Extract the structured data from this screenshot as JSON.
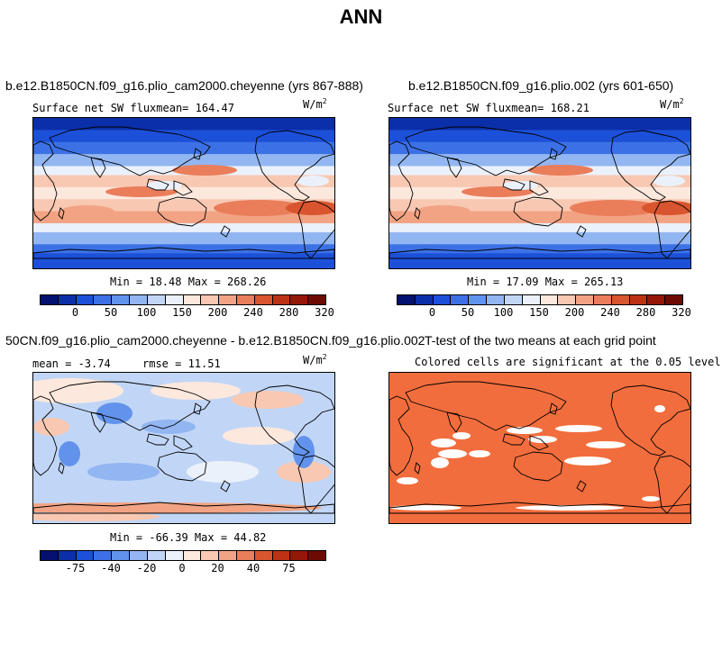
{
  "page": {
    "title": "ANN"
  },
  "colors": {
    "abs_scale": [
      "#05116e",
      "#0b2fa9",
      "#1c50d9",
      "#3c71e6",
      "#6293ec",
      "#92b6f1",
      "#c1d6f6",
      "#eaf1fb",
      "#fde8dd",
      "#f8c8b2",
      "#f2a383",
      "#ea7d5a",
      "#d9552f",
      "#bd3215",
      "#951708",
      "#6d0a04"
    ],
    "diff_scale": [
      "#05116e",
      "#0b2fa9",
      "#1c50d9",
      "#3c71e6",
      "#6293ec",
      "#92b6f1",
      "#c1d6f6",
      "#eaf1fb",
      "#fde8dd",
      "#f8c8b2",
      "#f2a383",
      "#ea7d5a",
      "#d9552f",
      "#bd3215",
      "#951708",
      "#6d0a04"
    ],
    "ttest": "#f26d3d"
  },
  "panels": [
    {
      "case": "b.e12.B1850CN.f09_g16.plio_cam2000.cheyenne (yrs 867-888)",
      "variable": "Surface net SW flux",
      "mean_label": "mean= 164.47",
      "units_base": "W/m",
      "units_exp": "2",
      "minmax": "Min =  18.48 Max = 268.26"
    },
    {
      "case": "b.e12.B1850CN.f09_g16.plio.002 (yrs 601-650)",
      "variable": "Surface net SW flux",
      "mean_label": "mean= 168.21",
      "units_base": "W/m",
      "units_exp": "2",
      "minmax": "Min =  17.09 Max = 265.13"
    },
    {
      "case": "50CN.f09_g16.plio_cam2000.cheyenne - b.e12.B1850CN.f09_g16.plio.002",
      "mean_label": "mean =  -3.74",
      "rmse_label": "rmse =  11.51",
      "units_base": "W/m",
      "units_exp": "2",
      "minmax": "Min = -66.39 Max =  44.82"
    },
    {
      "case": "T-test of the two means at each grid point",
      "subtitle": "Colored cells are significant at the 0.05 level"
    }
  ],
  "colorbars": {
    "abs_ticks": [
      "0",
      "50",
      "100",
      "150",
      "200",
      "240",
      "280",
      "320"
    ],
    "diff_ticks": [
      "-75",
      "-40",
      "-20",
      "0",
      "20",
      "40",
      "75"
    ]
  },
  "chart_data": [
    {
      "type": "heatmap",
      "title": "b.e12.B1850CN.f09_g16.plio_cam2000.cheyenne (yrs 867-888)",
      "variable": "Surface net SW flux",
      "units": "W/m2",
      "mean": 164.47,
      "min": 18.48,
      "max": 268.26,
      "colorbar_ticks": [
        0,
        50,
        100,
        150,
        200,
        240,
        280,
        320
      ]
    },
    {
      "type": "heatmap",
      "title": "b.e12.B1850CN.f09_g16.plio.002 (yrs 601-650)",
      "variable": "Surface net SW flux",
      "units": "W/m2",
      "mean": 168.21,
      "min": 17.09,
      "max": 265.13,
      "colorbar_ticks": [
        0,
        50,
        100,
        150,
        200,
        240,
        280,
        320
      ]
    },
    {
      "type": "heatmap",
      "title": "50CN.f09_g16.plio_cam2000.cheyenne - b.e12.B1850CN.f09_g16.plio.002",
      "units": "W/m2",
      "mean": -3.74,
      "rmse": 11.51,
      "min": -66.39,
      "max": 44.82,
      "colorbar_ticks": [
        -75,
        -40,
        -20,
        0,
        20,
        40,
        75
      ]
    },
    {
      "type": "heatmap",
      "title": "T-test of the two means at each grid point",
      "subtitle": "Colored cells are significant at the 0.05 level"
    }
  ]
}
